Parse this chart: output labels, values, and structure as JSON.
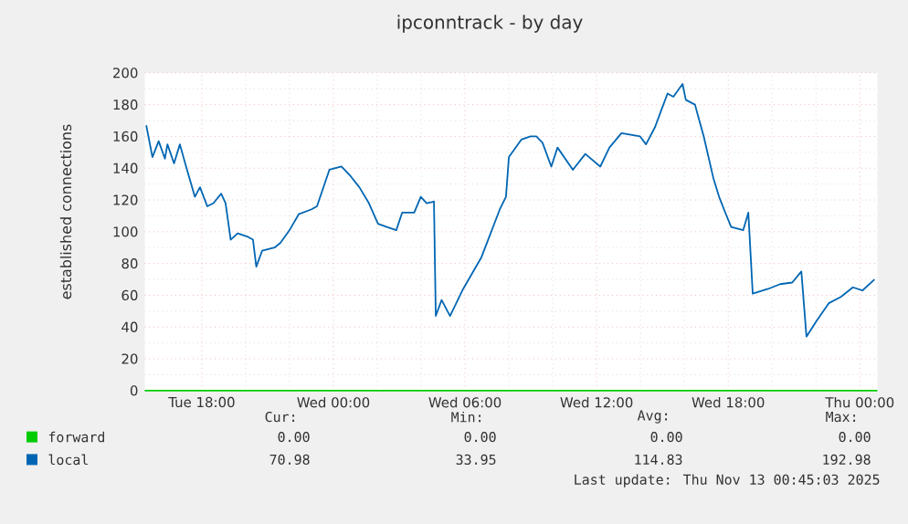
{
  "chart_data": {
    "type": "line",
    "title": "ipconntrack - by day",
    "ylabel": "established connections",
    "xlim": [
      "2025-11-11T15:24",
      "2025-11-13T00:48"
    ],
    "xticks": [
      {
        "value": "2025-11-11T18:00",
        "label": "Tue 18:00"
      },
      {
        "value": "2025-11-12T00:00",
        "label": "Wed 00:00"
      },
      {
        "value": "2025-11-12T06:00",
        "label": "Wed 06:00"
      },
      {
        "value": "2025-11-12T12:00",
        "label": "Wed 12:00"
      },
      {
        "value": "2025-11-12T18:00",
        "label": "Wed 18:00"
      },
      {
        "value": "2025-11-13T00:00",
        "label": "Thu 00:00"
      }
    ],
    "ylim": [
      0,
      200
    ],
    "yticks": [
      0,
      20,
      40,
      60,
      80,
      100,
      120,
      140,
      160,
      180,
      200
    ],
    "grid": true,
    "legend": "bottom",
    "marker": "none",
    "line_style": "solid",
    "series": [
      {
        "name": "forward",
        "color": "#00cc00",
        "x": [
          "2025-11-11T15:24",
          "2025-11-13T00:48"
        ],
        "values": [
          0,
          0
        ]
      },
      {
        "name": "local",
        "color": "#0066b3",
        "x": [
          "2025-11-11T15:28",
          "2025-11-11T15:45",
          "2025-11-11T16:02",
          "2025-11-11T16:19",
          "2025-11-11T16:26",
          "2025-11-11T16:44",
          "2025-11-11T17:00",
          "2025-11-11T17:17",
          "2025-11-11T17:41",
          "2025-11-11T17:55",
          "2025-11-11T18:15",
          "2025-11-11T18:32",
          "2025-11-11T18:53",
          "2025-11-11T19:05",
          "2025-11-11T19:19",
          "2025-11-11T19:38",
          "2025-11-11T20:04",
          "2025-11-11T20:20",
          "2025-11-11T20:29",
          "2025-11-11T20:45",
          "2025-11-11T21:19",
          "2025-11-11T21:35",
          "2025-11-11T22:00",
          "2025-11-11T22:25",
          "2025-11-11T22:59",
          "2025-11-11T23:15",
          "2025-11-11T23:49",
          "2025-11-12T00:22",
          "2025-11-12T00:47",
          "2025-11-12T01:11",
          "2025-11-12T01:37",
          "2025-11-12T02:02",
          "2025-11-12T02:26",
          "2025-11-12T02:52",
          "2025-11-12T03:08",
          "2025-11-12T03:41",
          "2025-11-12T03:59",
          "2025-11-12T04:15",
          "2025-11-12T04:35",
          "2025-11-12T04:40",
          "2025-11-12T04:56",
          "2025-11-12T05:19",
          "2025-11-12T05:55",
          "2025-11-12T06:45",
          "2025-11-12T07:10",
          "2025-11-12T07:35",
          "2025-11-12T07:52",
          "2025-11-12T08:00",
          "2025-11-12T08:34",
          "2025-11-12T08:59",
          "2025-11-12T09:15",
          "2025-11-12T09:32",
          "2025-11-12T09:56",
          "2025-11-12T10:13",
          "2025-11-12T10:55",
          "2025-11-12T11:29",
          "2025-11-12T12:10",
          "2025-11-12T12:35",
          "2025-11-12T13:08",
          "2025-11-12T13:59",
          "2025-11-12T14:15",
          "2025-11-12T14:40",
          "2025-11-12T14:56",
          "2025-11-12T15:14",
          "2025-11-12T15:30",
          "2025-11-12T15:55",
          "2025-11-12T16:04",
          "2025-11-12T16:29",
          "2025-11-12T16:53",
          "2025-11-12T17:19",
          "2025-11-12T17:35",
          "2025-11-12T17:52",
          "2025-11-12T18:08",
          "2025-11-12T18:41",
          "2025-11-12T18:55",
          "2025-11-12T19:07",
          "2025-11-12T19:49",
          "2025-11-12T20:22",
          "2025-11-12T20:55",
          "2025-11-12T21:20",
          "2025-11-12T21:34",
          "2025-11-12T22:02",
          "2025-11-12T22:35",
          "2025-11-12T23:08",
          "2025-11-12T23:41",
          "2025-11-13T00:07",
          "2025-11-13T00:40"
        ],
        "values": [
          167,
          147,
          157,
          146,
          155,
          143,
          155,
          141,
          122,
          128,
          116,
          118,
          124,
          118,
          95,
          99,
          97,
          95,
          78,
          88,
          90,
          93,
          101,
          111,
          114,
          116,
          139,
          141,
          135,
          128,
          118,
          105,
          103,
          101,
          112,
          112,
          122,
          118,
          119,
          47,
          57,
          47,
          64,
          84,
          99,
          114,
          122,
          147,
          158,
          160,
          160,
          156,
          141,
          153,
          139,
          149,
          141,
          153,
          162,
          160,
          155,
          166,
          176,
          187,
          185,
          193,
          183,
          180,
          160,
          134,
          122,
          112,
          103,
          101,
          112,
          61,
          64,
          67,
          68,
          75,
          34,
          44,
          55,
          59,
          65,
          63,
          70
        ]
      }
    ],
    "annotations": [
      "Cur:",
      "Min:",
      "Avg:",
      "Max:",
      "0.00",
      "0.00",
      "0.00",
      "0.00",
      "70.98",
      "33.95",
      "114.83",
      "192.98",
      "Last update: Thu Nov 13 00:45:03 2025"
    ]
  }
}
